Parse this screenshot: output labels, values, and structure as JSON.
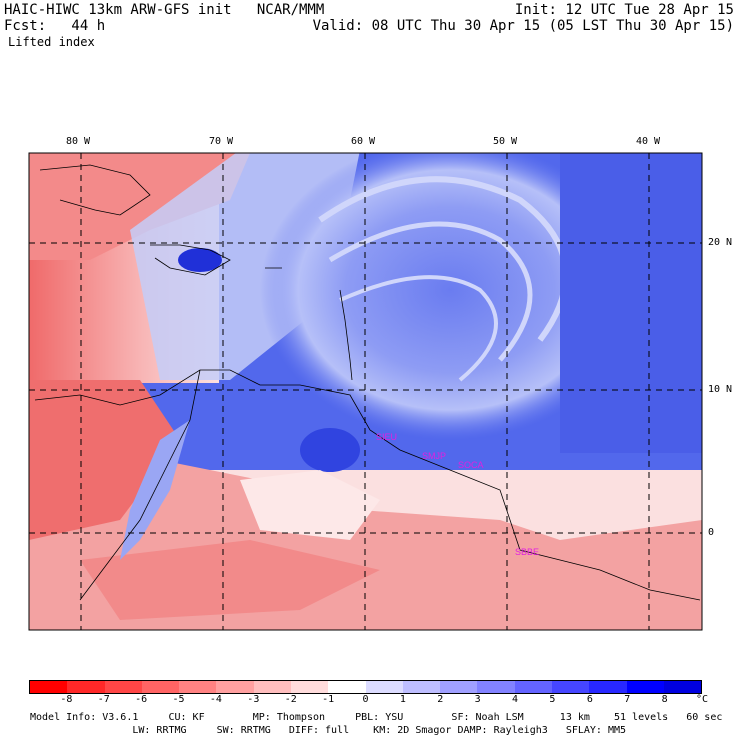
{
  "header": {
    "title": "HAIC-HIWC 13km ARW-GFS init   NCAR/MMM",
    "init": "Init: 12 UTC Tue 28 Apr 15",
    "fcst": "Fcst:   44 h",
    "valid": "Valid: 08 UTC Thu 30 Apr 15 (05 LST Thu 30 Apr 15)",
    "field": "Lifted index"
  },
  "map": {
    "lon_labels": [
      "80 W",
      "70 W",
      "60 W",
      "50 W",
      "40 W"
    ],
    "lat_labels": [
      "20 N",
      "10 N",
      "0"
    ],
    "stations": [
      "SIEU",
      "SMJP",
      "SOCA",
      "SBBE"
    ],
    "colors": {
      "warm": "#e8505a",
      "cool": "#4a5ee8",
      "neutral": "#ffffff"
    }
  },
  "colorbar": {
    "ticks": [
      "-8",
      "-7",
      "-6",
      "-5",
      "-4",
      "-3",
      "-2",
      "-1",
      "0",
      "1",
      "2",
      "3",
      "4",
      "5",
      "6",
      "7",
      "8"
    ],
    "unit": "°C",
    "colors": [
      "#ff0000",
      "#ff2828",
      "#ff4646",
      "#ff6464",
      "#ff8282",
      "#ffa0a0",
      "#ffbebe",
      "#ffdcdc",
      "#ffffff",
      "#dcdcff",
      "#bebeff",
      "#a0a0ff",
      "#8282ff",
      "#6464ff",
      "#4646ff",
      "#2828ff",
      "#0000ff",
      "#0000e0"
    ]
  },
  "model_info": {
    "line1": "Model Info: V3.6.1     CU: KF        MP: Thompson     PBL: YSU        SF: Noah LSM      13 km    51 levels   60 sec",
    "line2": "                 LW: RRTMG     SW: RRTMG   DIFF: full    KM: 2D Smagor DAMP: Rayleigh3   SFLAY: MM5"
  }
}
